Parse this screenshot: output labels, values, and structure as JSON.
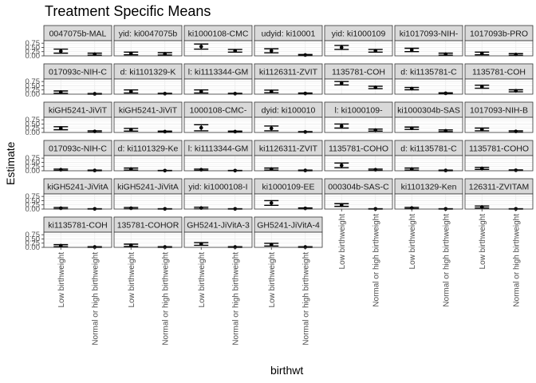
{
  "chart_data": {
    "type": "scatter",
    "title": "Treatment Specific Means",
    "xlabel": "birthwt",
    "ylabel": "Estimate",
    "categories": [
      "Low birthweight",
      "Normal or high birthweight"
    ],
    "y_ticks": [
      "0.00",
      "0.25",
      "0.50",
      "0.75"
    ],
    "ylim": [
      0,
      0.9
    ],
    "grid": true,
    "facet_ncol": 7,
    "panels": [
      {
        "strip": "0047075b-MAL",
        "values": [
          0.28,
          0.1
        ],
        "lower": [
          0.16,
          0.04
        ],
        "upper": [
          0.4,
          0.16
        ]
      },
      {
        "strip": "yid: ki0047075b",
        "values": [
          0.14,
          0.12
        ],
        "lower": [
          0.06,
          0.05
        ],
        "upper": [
          0.22,
          0.19
        ]
      },
      {
        "strip": "ki1000108-CMC",
        "values": [
          0.55,
          0.3
        ],
        "lower": [
          0.4,
          0.22
        ],
        "upper": [
          0.7,
          0.38
        ]
      },
      {
        "strip": "udyid: ki10001",
        "values": [
          0.3,
          0.05
        ],
        "lower": [
          0.18,
          0.02
        ],
        "upper": [
          0.42,
          0.08
        ]
      },
      {
        "strip": "yid: ki1000109",
        "values": [
          0.5,
          0.3
        ],
        "lower": [
          0.38,
          0.22
        ],
        "upper": [
          0.62,
          0.38
        ]
      },
      {
        "strip": "ki1017093-NIH-",
        "values": [
          0.35,
          0.1
        ],
        "lower": [
          0.25,
          0.04
        ],
        "upper": [
          0.45,
          0.16
        ]
      },
      {
        "strip": "1017093b-PRO",
        "values": [
          0.14,
          0.08
        ],
        "lower": [
          0.06,
          0.03
        ],
        "upper": [
          0.22,
          0.13
        ]
      },
      {
        "strip": "017093c-NIH-C",
        "values": [
          0.12,
          0.02
        ],
        "lower": [
          0.05,
          0.0
        ],
        "upper": [
          0.19,
          0.04
        ]
      },
      {
        "strip": "d: ki1101329-K",
        "values": [
          0.16,
          0.03
        ],
        "lower": [
          0.07,
          0.01
        ],
        "upper": [
          0.25,
          0.05
        ]
      },
      {
        "strip": "l: ki1113344-GM",
        "values": [
          0.16,
          0.03
        ],
        "lower": [
          0.07,
          0.01
        ],
        "upper": [
          0.25,
          0.05
        ]
      },
      {
        "strip": "ki1126311-ZVIT",
        "values": [
          0.16,
          0.04
        ],
        "lower": [
          0.08,
          0.01
        ],
        "upper": [
          0.24,
          0.07
        ]
      },
      {
        "strip": "1135781-COH",
        "values": [
          0.65,
          0.4
        ],
        "lower": [
          0.55,
          0.33
        ],
        "upper": [
          0.75,
          0.47
        ]
      },
      {
        "strip": "d: ki1135781-C",
        "values": [
          0.33,
          0.05
        ],
        "lower": [
          0.26,
          0.02
        ],
        "upper": [
          0.4,
          0.08
        ]
      },
      {
        "strip": "1135781-COH",
        "values": [
          0.44,
          0.2
        ],
        "lower": [
          0.35,
          0.14
        ],
        "upper": [
          0.53,
          0.26
        ]
      },
      {
        "strip": "kiGH5241-JiViT",
        "values": [
          0.25,
          0.06
        ],
        "lower": [
          0.16,
          0.02
        ],
        "upper": [
          0.34,
          0.1
        ]
      },
      {
        "strip": "kiGH5241-JiViT",
        "values": [
          0.16,
          0.05
        ],
        "lower": [
          0.08,
          0.02
        ],
        "upper": [
          0.24,
          0.08
        ]
      },
      {
        "strip": "1000108-CMC-",
        "values": [
          0.28,
          0.05
        ],
        "lower": [
          0.1,
          0.02
        ],
        "upper": [
          0.46,
          0.08
        ]
      },
      {
        "strip": "dyid: ki100010",
        "values": [
          0.24,
          0.03
        ],
        "lower": [
          0.1,
          0.01
        ],
        "upper": [
          0.38,
          0.05
        ]
      },
      {
        "strip": "l: ki1000109-",
        "values": [
          0.38,
          0.14
        ],
        "lower": [
          0.26,
          0.08
        ],
        "upper": [
          0.5,
          0.2
        ]
      },
      {
        "strip": "ki1000304b-SAS",
        "values": [
          0.25,
          0.1
        ],
        "lower": [
          0.18,
          0.05
        ],
        "upper": [
          0.32,
          0.15
        ]
      },
      {
        "strip": "1017093-NIH-B",
        "values": [
          0.18,
          0.06
        ],
        "lower": [
          0.1,
          0.02
        ],
        "upper": [
          0.26,
          0.1
        ]
      },
      {
        "strip": "017093c-NIH-C",
        "values": [
          0.06,
          0.02
        ],
        "lower": [
          0.02,
          0.0
        ],
        "upper": [
          0.1,
          0.04
        ]
      },
      {
        "strip": "d: ki1101329-Ke",
        "values": [
          0.1,
          0.01
        ],
        "lower": [
          0.04,
          0.0
        ],
        "upper": [
          0.16,
          0.02
        ]
      },
      {
        "strip": "l: ki1113344-GM",
        "values": [
          0.06,
          0.01
        ],
        "lower": [
          0.02,
          0.0
        ],
        "upper": [
          0.1,
          0.02
        ]
      },
      {
        "strip": "ki1126311-ZVIT",
        "values": [
          0.1,
          0.02
        ],
        "lower": [
          0.04,
          0.0
        ],
        "upper": [
          0.16,
          0.04
        ]
      },
      {
        "strip": "1135781-COHO",
        "values": [
          0.32,
          0.06
        ],
        "lower": [
          0.18,
          0.02
        ],
        "upper": [
          0.46,
          0.1
        ]
      },
      {
        "strip": "d: ki1135781-C",
        "values": [
          0.1,
          0.02
        ],
        "lower": [
          0.04,
          0.0
        ],
        "upper": [
          0.16,
          0.04
        ]
      },
      {
        "strip": "1135781-COHO",
        "values": [
          0.14,
          0.03
        ],
        "lower": [
          0.08,
          0.01
        ],
        "upper": [
          0.2,
          0.05
        ]
      },
      {
        "strip": "kiGH5241-JiVitA",
        "values": [
          0.05,
          0.01
        ],
        "lower": [
          0.01,
          0.0
        ],
        "upper": [
          0.09,
          0.02
        ]
      },
      {
        "strip": "kiGH5241-JiVitA",
        "values": [
          0.05,
          0.01
        ],
        "lower": [
          0.01,
          0.0
        ],
        "upper": [
          0.09,
          0.02
        ]
      },
      {
        "strip": "yid: ki1000108-I",
        "values": [
          0.06,
          0.01
        ],
        "lower": [
          0.01,
          0.0
        ],
        "upper": [
          0.11,
          0.02
        ]
      },
      {
        "strip": "ki1000109-EE",
        "values": [
          0.36,
          0.04
        ],
        "lower": [
          0.22,
          0.01
        ],
        "upper": [
          0.5,
          0.07
        ]
      },
      {
        "strip": "000304b-SAS-C",
        "values": [
          0.24,
          0.01
        ],
        "lower": [
          0.16,
          0.0
        ],
        "upper": [
          0.32,
          0.02
        ]
      },
      {
        "strip": "ki1101329-Ken",
        "values": [
          0.06,
          0.01
        ],
        "lower": [
          0.02,
          0.0
        ],
        "upper": [
          0.1,
          0.02
        ]
      },
      {
        "strip": "126311-ZVITAM",
        "values": [
          0.12,
          0.01
        ],
        "lower": [
          0.06,
          0.0
        ],
        "upper": [
          0.18,
          0.02
        ]
      },
      {
        "strip": "ki1135781-COH",
        "values": [
          0.1,
          0.02
        ],
        "lower": [
          0.04,
          0.0
        ],
        "upper": [
          0.16,
          0.04
        ]
      },
      {
        "strip": "135781-COHOR",
        "values": [
          0.12,
          0.02
        ],
        "lower": [
          0.05,
          0.0
        ],
        "upper": [
          0.19,
          0.04
        ]
      },
      {
        "strip": "GH5241-JiVitA-3",
        "values": [
          0.2,
          0.02
        ],
        "lower": [
          0.12,
          0.0
        ],
        "upper": [
          0.28,
          0.04
        ]
      },
      {
        "strip": "GH5241-JiVitA-4",
        "values": [
          0.16,
          0.02
        ],
        "lower": [
          0.08,
          0.0
        ],
        "upper": [
          0.24,
          0.04
        ]
      }
    ]
  }
}
